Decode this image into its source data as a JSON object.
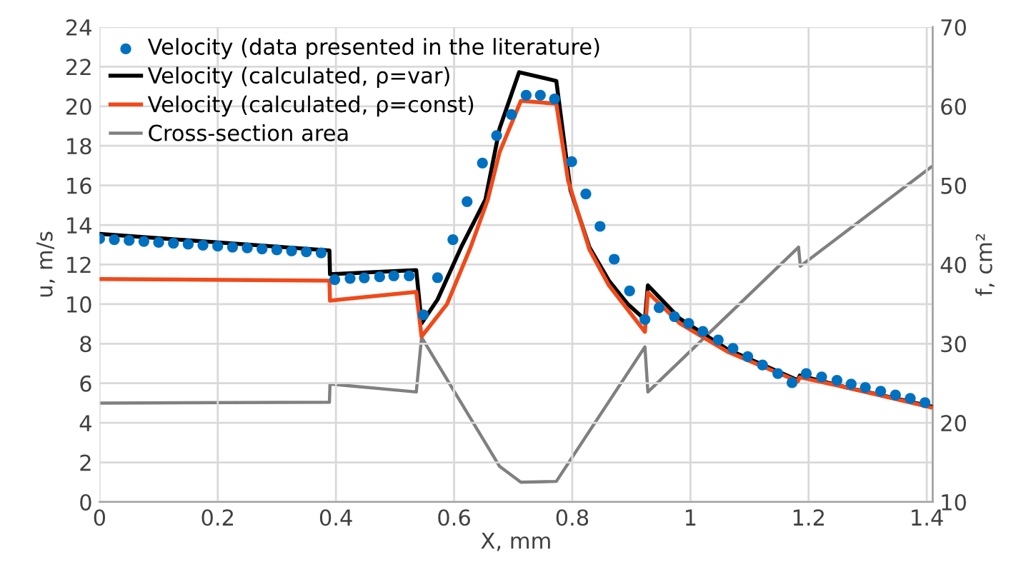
{
  "chart_data": {
    "type": "line",
    "xlabel": "X, mm",
    "ylabel": "u, m/s",
    "y2label": "f, cm²",
    "xlim": [
      0,
      1.41
    ],
    "xticks": [
      0,
      0.2,
      0.4,
      0.6,
      0.8,
      1,
      1.2,
      1.4
    ],
    "ylim": [
      0,
      24
    ],
    "yticks": [
      0,
      2,
      4,
      6,
      8,
      10,
      12,
      14,
      16,
      18,
      20,
      22,
      24
    ],
    "y2lim": [
      10,
      70
    ],
    "y2ticks": [
      10,
      20,
      30,
      40,
      50,
      60,
      70
    ],
    "grid": true,
    "legend": "top left",
    "series": [
      {
        "name": "Velocity (data presented in the literature)",
        "type": "scatter",
        "marker": "circle",
        "color": "#0070c0",
        "x": [
          0,
          0.025,
          0.05,
          0.075,
          0.1,
          0.125,
          0.15,
          0.175,
          0.2,
          0.225,
          0.25,
          0.275,
          0.3,
          0.325,
          0.35,
          0.375,
          0.398,
          0.424,
          0.448,
          0.474,
          0.498,
          0.524,
          0.548,
          0.572,
          0.598,
          0.622,
          0.648,
          0.672,
          0.697,
          0.722,
          0.746,
          0.77,
          0.799,
          0.823,
          0.847,
          0.871,
          0.897,
          0.923,
          0.947,
          0.973,
          0.997,
          1.021,
          1.047,
          1.072,
          1.097,
          1.122,
          1.148,
          1.172,
          1.196,
          1.222,
          1.248,
          1.272,
          1.296,
          1.322,
          1.347,
          1.372,
          1.397
        ],
        "values": [
          13.31,
          13.26,
          13.22,
          13.17,
          13.12,
          13.08,
          13.03,
          12.98,
          12.93,
          12.88,
          12.84,
          12.79,
          12.74,
          12.69,
          12.64,
          12.59,
          11.24,
          11.3,
          11.33,
          11.38,
          11.43,
          11.43,
          9.46,
          11.34,
          13.26,
          15.18,
          17.13,
          18.52,
          19.58,
          20.56,
          20.56,
          20.37,
          17.2,
          15.57,
          13.93,
          12.27,
          10.67,
          9.22,
          9.82,
          9.37,
          9.03,
          8.62,
          8.19,
          7.76,
          7.35,
          6.92,
          6.49,
          6.03,
          6.49,
          6.32,
          6.15,
          5.96,
          5.79,
          5.6,
          5.41,
          5.24,
          5.02
        ]
      },
      {
        "name": "Velocity (calculated, ρ=var)",
        "color": "#000000",
        "x": [
          0,
          0.389,
          0.39,
          0.536,
          0.545,
          0.572,
          0.612,
          0.653,
          0.677,
          0.71,
          0.773,
          0.797,
          0.829,
          0.862,
          0.894,
          0.923,
          0.928,
          0.982,
          1.063,
          1.182,
          1.185,
          1.264,
          1.407
        ],
        "values": [
          13.55,
          12.71,
          11.51,
          11.72,
          9.03,
          10.23,
          12.88,
          15.28,
          18.88,
          21.72,
          21.28,
          15.76,
          12.88,
          11.19,
          10.0,
          9.22,
          10.95,
          9.27,
          7.71,
          6.15,
          6.39,
          5.79,
          4.83
        ]
      },
      {
        "name": "Velocity (calculated, ρ=const)",
        "color": "#f04a1a",
        "x": [
          0,
          0.389,
          0.39,
          0.536,
          0.545,
          0.588,
          0.628,
          0.657,
          0.677,
          0.713,
          0.773,
          0.793,
          0.829,
          0.862,
          0.923,
          0.928,
          0.982,
          1.063,
          1.182,
          1.185,
          1.264,
          1.407
        ],
        "values": [
          11.27,
          11.19,
          10.18,
          10.62,
          8.36,
          10.0,
          12.88,
          15.28,
          17.68,
          20.27,
          20.13,
          16.24,
          12.76,
          10.95,
          8.6,
          10.59,
          9.03,
          7.59,
          6.1,
          6.3,
          5.79,
          4.78
        ]
      },
      {
        "name": "Cross-section area",
        "color": "#808080",
        "axis": "y2",
        "x": [
          0,
          0.389,
          0.39,
          0.536,
          0.545,
          0.677,
          0.713,
          0.773,
          0.923,
          0.928,
          1.183,
          1.186,
          1.407
        ],
        "values": [
          22.5,
          22.6,
          24.9,
          23.9,
          30.8,
          14.5,
          12.5,
          12.6,
          29.6,
          23.9,
          42.2,
          39.8,
          52.3
        ]
      }
    ]
  }
}
